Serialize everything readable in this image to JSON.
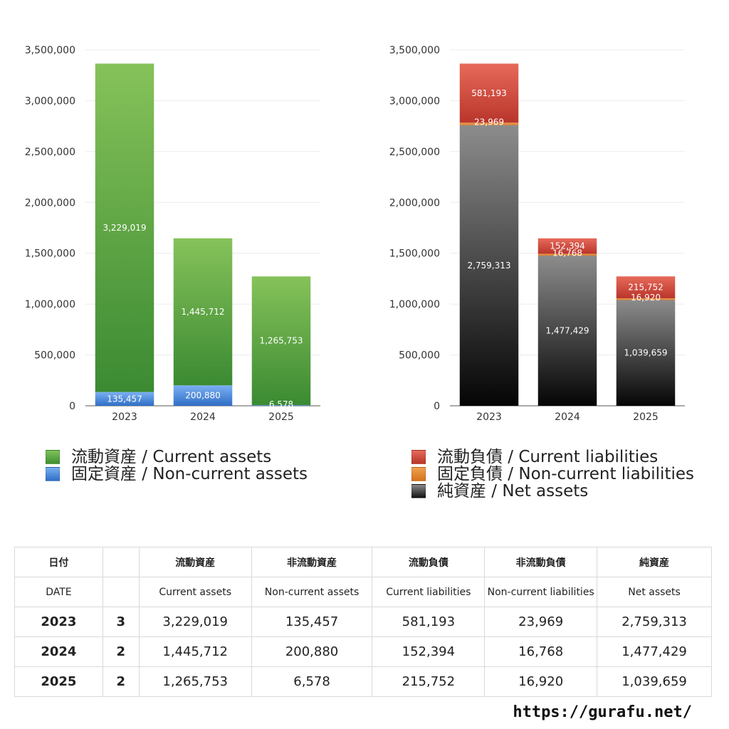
{
  "chart_data": [
    {
      "type": "bar",
      "stacked": true,
      "categories": [
        "2023",
        "2024",
        "2025"
      ],
      "ylim": [
        0,
        3500000
      ],
      "yticks": [
        "0",
        "500,000",
        "1,000,000",
        "1,500,000",
        "2,000,000",
        "2,500,000",
        "3,000,000",
        "3,500,000"
      ],
      "grid": true,
      "legend_position": "bottom",
      "series": [
        {
          "name": "固定資産 / Non-current assets",
          "values": [
            135457,
            200880,
            6578
          ],
          "labels": [
            "135,457",
            "200,880",
            "6,578"
          ],
          "color": "#4a86d8"
        },
        {
          "name": "流動資産 / Current assets",
          "values": [
            3229019,
            1445712,
            1265753
          ],
          "labels": [
            "3,229,019",
            "1,445,712",
            "1,265,753"
          ],
          "color": "#5aa83f"
        }
      ]
    },
    {
      "type": "bar",
      "stacked": true,
      "categories": [
        "2023",
        "2024",
        "2025"
      ],
      "ylim": [
        0,
        3500000
      ],
      "yticks": [
        "0",
        "500,000",
        "1,000,000",
        "1,500,000",
        "2,000,000",
        "2,500,000",
        "3,000,000",
        "3,500,000"
      ],
      "grid": true,
      "legend_position": "bottom",
      "series": [
        {
          "name": "純資産 / Net assets",
          "values": [
            2759313,
            1477429,
            1039659
          ],
          "labels": [
            "2,759,313",
            "1,477,429",
            "1,039,659"
          ],
          "color": "#555555"
        },
        {
          "name": "固定負債 / Non-current liabilities",
          "values": [
            23969,
            16768,
            16920
          ],
          "labels": [
            "23,969",
            "16,768",
            "16,920"
          ],
          "color": "#e8892e"
        },
        {
          "name": "流動負債 / Current liabilities",
          "values": [
            581193,
            152394,
            215752
          ],
          "labels": [
            "581,193",
            "152,394",
            "215,752"
          ],
          "color": "#d8483a"
        }
      ]
    }
  ],
  "legend_left": [
    {
      "label": "流動資産 / Current assets",
      "color": "#5aa83f"
    },
    {
      "label": "固定資産 / Non-current assets",
      "color": "#4a86d8"
    }
  ],
  "legend_right": [
    {
      "label": "流動負債 / Current liabilities",
      "color": "#d8483a"
    },
    {
      "label": "固定負債 / Non-current liabilities",
      "color": "#e8892e"
    },
    {
      "label": "純資産 / Net assets",
      "color": "#333333"
    }
  ],
  "table": {
    "header_jp": {
      "date": "日付",
      "current_assets": "流動資産",
      "noncurrent_assets": "非流動資産",
      "current_liabilities": "流動負債",
      "noncurrent_liabilities": "非流動負債",
      "net_assets": "純資産"
    },
    "header_en": {
      "date": "DATE",
      "current_assets": "Current assets",
      "noncurrent_assets": "Non-current assets",
      "current_liabilities": "Current liabilities",
      "noncurrent_liabilities": "Non-current liabilities",
      "net_assets": "Net assets"
    },
    "rows": [
      {
        "year": "2023",
        "count": "3",
        "current_assets": "3,229,019",
        "noncurrent_assets": "135,457",
        "current_liabilities": "581,193",
        "noncurrent_liabilities": "23,969",
        "net_assets": "2,759,313"
      },
      {
        "year": "2024",
        "count": "2",
        "current_assets": "1,445,712",
        "noncurrent_assets": "200,880",
        "current_liabilities": "152,394",
        "noncurrent_liabilities": "16,768",
        "net_assets": "1,477,429"
      },
      {
        "year": "2025",
        "count": "2",
        "current_assets": "1,265,753",
        "noncurrent_assets": "6,578",
        "current_liabilities": "215,752",
        "noncurrent_liabilities": "16,920",
        "net_assets": "1,039,659"
      }
    ]
  },
  "footer": {
    "url": "https://gurafu.net/"
  }
}
